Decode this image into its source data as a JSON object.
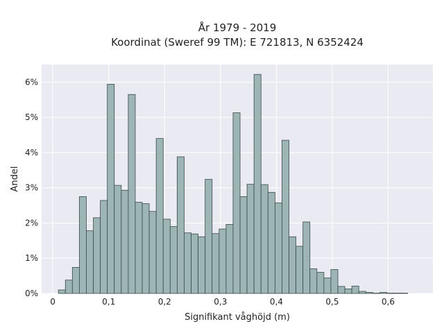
{
  "chart_data": {
    "type": "bar",
    "title": "År 1979 - 2019",
    "subtitle": "Koordinat (Sweref 99 TM): E 721813, N 6352424",
    "xlabel": "Signifikant våghöjd (m)",
    "ylabel": "Andel",
    "xlim": [
      -0.02,
      0.68
    ],
    "ylim": [
      0,
      6.5
    ],
    "x_ticks": [
      0,
      0.1,
      0.2,
      0.3,
      0.4,
      0.5,
      0.6
    ],
    "x_tick_labels": [
      "0",
      "0,1",
      "0,2",
      "0,3",
      "0,4",
      "0,5",
      "0,6"
    ],
    "y_ticks": [
      0,
      1,
      2,
      3,
      4,
      5,
      6
    ],
    "y_tick_labels": [
      "0%",
      "1%",
      "2%",
      "3%",
      "4%",
      "5%",
      "6%"
    ],
    "bin_width": 0.0125,
    "bin_start": 0.01,
    "values": [
      0.1,
      0.38,
      0.74,
      2.75,
      1.78,
      2.15,
      2.64,
      5.94,
      3.07,
      2.93,
      5.65,
      2.59,
      2.55,
      2.33,
      4.4,
      2.11,
      1.9,
      3.88,
      1.72,
      1.69,
      1.61,
      3.24,
      1.7,
      1.83,
      1.96,
      5.13,
      2.75,
      3.1,
      6.22,
      3.09,
      2.87,
      2.57,
      4.35,
      1.61,
      1.34,
      2.03,
      0.7,
      0.6,
      0.44,
      0.68,
      0.2,
      0.13,
      0.21,
      0.06,
      0.03,
      0.01,
      0.03,
      0.01,
      0.01,
      0.01
    ],
    "grid": true,
    "colors": {
      "bar_fill": "#9db5b5",
      "bar_edge": "#3a4a4a",
      "plot_bg": "#eaeaf2",
      "grid": "#ffffff"
    }
  }
}
